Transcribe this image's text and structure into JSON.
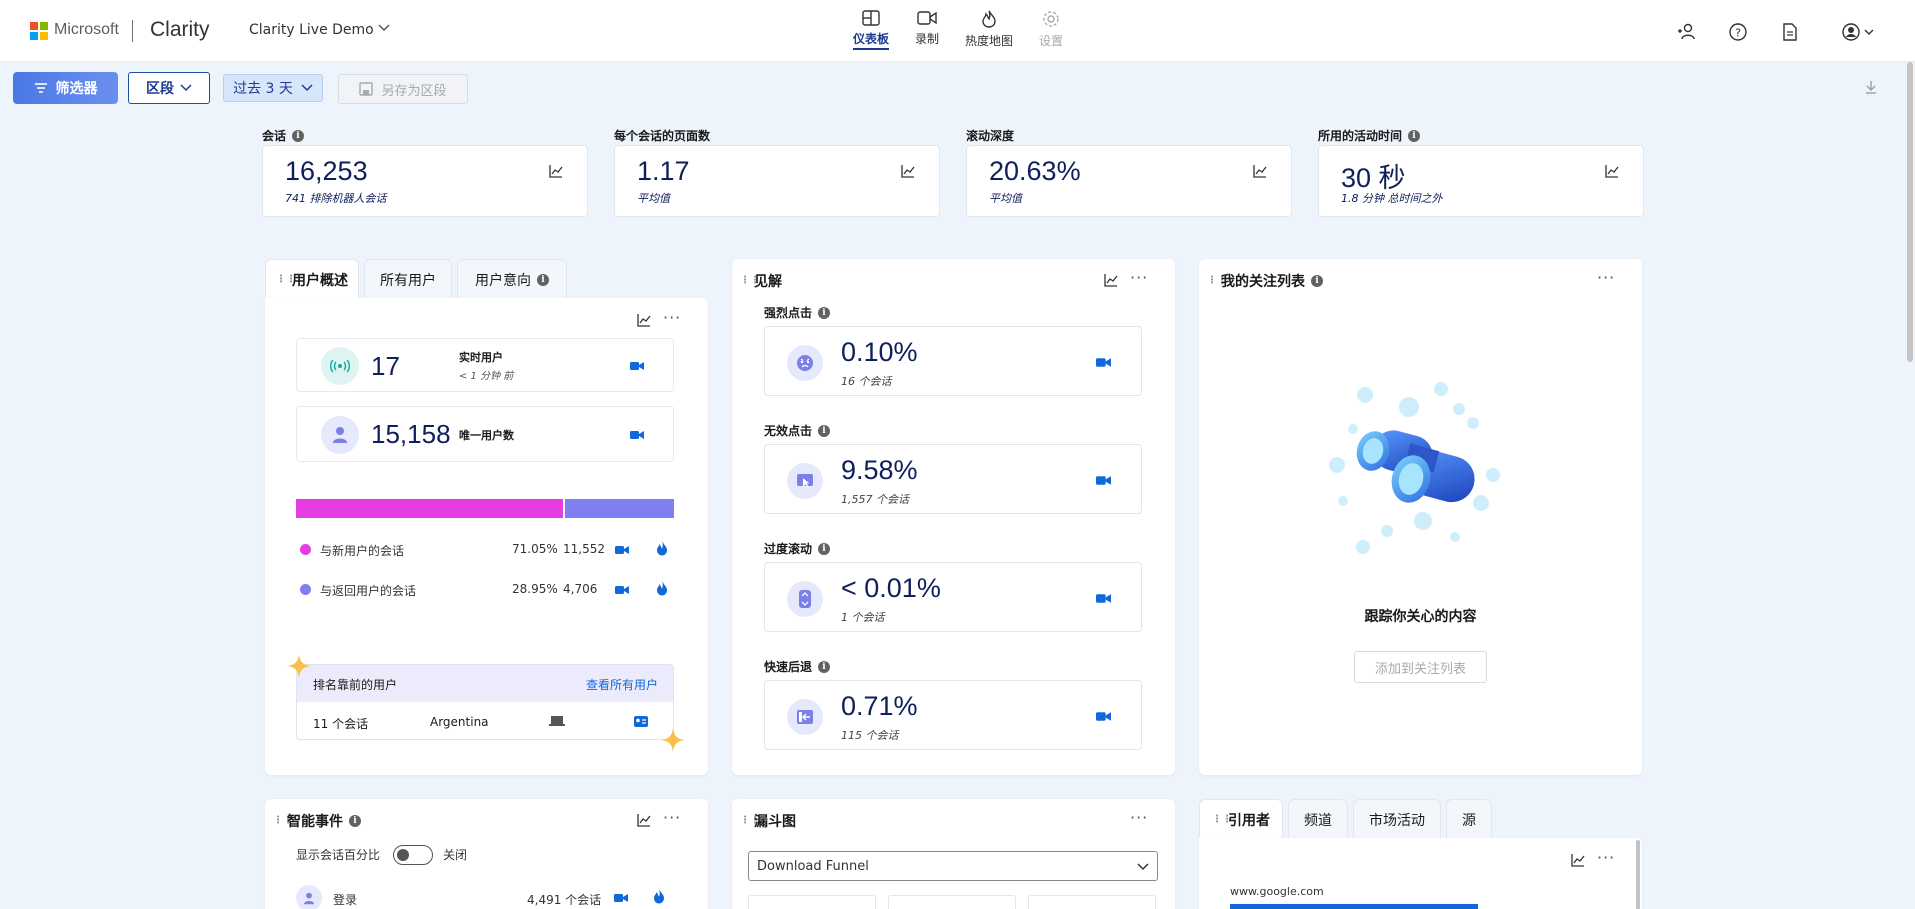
{
  "header": {
    "brand": "Microsoft",
    "product": "Clarity",
    "project": "Clarity Live Demo",
    "nav": [
      {
        "label": "仪表板",
        "icon": "dashboard-icon",
        "active": true
      },
      {
        "label": "录制",
        "icon": "video-icon"
      },
      {
        "label": "热度地图",
        "icon": "flame-icon"
      },
      {
        "label": "设置",
        "icon": "gear-icon",
        "disabled": true
      }
    ]
  },
  "toolbar": {
    "filter_label": "筛选器",
    "segment_label": "区段",
    "range_label": "过去 3 天",
    "save_label": "另存为区段"
  },
  "metrics": [
    {
      "label": "会话",
      "value": "16,253",
      "sub": "741 排除机器人会话",
      "info": true
    },
    {
      "label": "每个会话的页面数",
      "value": "1.17",
      "sub": "平均值",
      "info": false
    },
    {
      "label": "滚动深度",
      "value": "20.63%",
      "sub": "平均值",
      "info": false
    },
    {
      "label": "所用的活动时间",
      "value": "30 秒",
      "sub": "1.8 分钟 总时间之外",
      "info": true
    }
  ],
  "user_overview": {
    "tabs": [
      "用户概述",
      "所有用户",
      "用户意向"
    ],
    "live_users": {
      "value": "17",
      "label": "实时用户",
      "sub": "< 1 分钟 前"
    },
    "unique_users": {
      "value": "15,158",
      "label": "唯一用户数"
    },
    "split_new_pct": 71.05,
    "new_users": {
      "label": "与新用户的会话",
      "pct": "71.05%",
      "count": "11,552",
      "color": "#e83ce3"
    },
    "returning_users": {
      "label": "与返回用户的会话",
      "pct": "28.95%",
      "count": "4,706",
      "color": "#7f7ff2"
    },
    "top_users": {
      "title": "排名靠前的用户",
      "link": "查看所有用户",
      "sessions": "11 个会话",
      "country": "Argentina"
    }
  },
  "insights": {
    "title": "见解",
    "items": [
      {
        "label": "强烈点击",
        "value": "0.10%",
        "sub": "16 个会话",
        "icon": "angry-face-icon"
      },
      {
        "label": "无效点击",
        "value": "9.58%",
        "sub": "1,557 个会话",
        "icon": "dead-click-icon"
      },
      {
        "label": "过度滚动",
        "value": "< 0.01%",
        "sub": "1 个会话",
        "icon": "scroll-icon"
      },
      {
        "label": "快速后退",
        "value": "0.71%",
        "sub": "115 个会话",
        "icon": "back-arrow-icon"
      }
    ]
  },
  "watchlist": {
    "title": "我的关注列表",
    "empty_title": "跟踪你关心的内容",
    "add_label": "添加到关注列表"
  },
  "smart_events": {
    "title": "智能事件",
    "toggle_label": "显示会话百分比",
    "toggle_state": "关闭",
    "first_row": {
      "label": "登录",
      "count": "4,491 个会话"
    }
  },
  "funnel": {
    "title": "漏斗图",
    "selected": "Download Funnel"
  },
  "referrers": {
    "tabs": [
      "引用者",
      "频道",
      "市场活动",
      "源"
    ],
    "first": "www.google.com"
  }
}
